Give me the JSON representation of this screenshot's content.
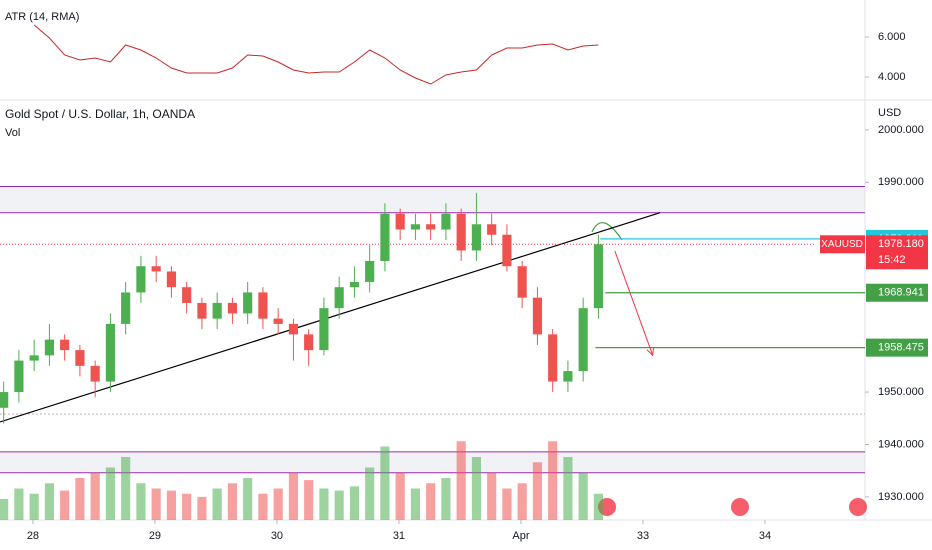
{
  "chart_data": {
    "type": "candlestick",
    "title": "Gold Spot / U.S. Dollar, 1h, OANDA",
    "volume_label": "Vol",
    "y_axis_unit": "USD",
    "x": [
      27.76,
      27.885,
      28.01,
      28.135,
      28.26,
      28.385,
      28.51,
      28.635,
      28.76,
      28.885,
      29.01,
      29.135,
      29.26,
      29.385,
      29.51,
      29.635,
      29.76,
      29.885,
      30.01,
      30.135,
      30.26,
      30.385,
      30.51,
      30.635,
      30.76,
      30.885,
      31.01,
      31.135,
      31.26,
      31.385,
      31.51,
      31.635,
      31.76,
      31.885,
      32.01,
      32.135,
      32.26,
      32.385,
      32.51,
      32.635
    ],
    "open": [
      1947,
      1950,
      1956,
      1957,
      1960,
      1958,
      1955,
      1952,
      1963,
      1969,
      1974,
      1973,
      1970,
      1967,
      1964,
      1967,
      1965,
      1969,
      1964,
      1963,
      1961,
      1958,
      1966,
      1970,
      1971,
      1975,
      1984,
      1981,
      1982,
      1981,
      1984,
      1977,
      1982,
      1980,
      1974,
      1968,
      1961,
      1952,
      1954,
      1966
    ],
    "high": [
      1952,
      1958,
      1960,
      1963,
      1961,
      1959,
      1956,
      1965,
      1971,
      1976,
      1976,
      1974,
      1971,
      1968,
      1969,
      1968,
      1971,
      1970,
      1966,
      1964,
      1962,
      1968,
      1972,
      1974,
      1978,
      1986,
      1985,
      1984,
      1984,
      1986,
      1985,
      1988,
      1984,
      1982,
      1975,
      1970,
      1962,
      1956,
      1968,
      1980
    ],
    "low": [
      1944,
      1948,
      1954,
      1955,
      1956,
      1953,
      1949,
      1950,
      1961,
      1967,
      1971,
      1968,
      1965,
      1962,
      1962,
      1963,
      1963,
      1962,
      1961,
      1956,
      1955,
      1957,
      1964,
      1968,
      1969,
      1973,
      1979,
      1979,
      1979,
      1979,
      1975,
      1975,
      1978,
      1973,
      1966,
      1959,
      1950,
      1950,
      1952,
      1964
    ],
    "close": [
      1950,
      1956,
      1957,
      1960,
      1958,
      1955,
      1952,
      1963,
      1969,
      1974,
      1973,
      1970,
      1967,
      1964,
      1967,
      1965,
      1969,
      1964,
      1963,
      1961,
      1958,
      1966,
      1970,
      1971,
      1975,
      1984,
      1981,
      1982,
      1981,
      1984,
      1977,
      1982,
      1980,
      1974,
      1968,
      1961,
      1952,
      1954,
      1966,
      1978.18
    ],
    "volume": [
      20,
      30,
      25,
      35,
      28,
      40,
      45,
      50,
      60,
      35,
      30,
      28,
      25,
      22,
      30,
      35,
      40,
      25,
      30,
      45,
      38,
      30,
      28,
      32,
      50,
      70,
      45,
      30,
      35,
      40,
      75,
      60,
      45,
      30,
      35,
      55,
      75,
      60,
      45,
      25
    ],
    "volume_ylim": [
      0,
      100
    ],
    "up_color": "#4caf50",
    "down_color": "#ef5350",
    "xlim": [
      27.73,
      34.82
    ],
    "xticks": [
      28,
      29,
      30,
      31,
      {
        "value": 32,
        "label": "Apr"
      },
      33,
      34
    ],
    "ylim": [
      1925.6,
      2005.7
    ],
    "yticks": [
      {
        "value": 2000,
        "label": "2000.000"
      },
      {
        "value": 1990,
        "label": "1990.000"
      },
      {
        "value": 1950,
        "label": "1950.000"
      },
      {
        "value": 1940,
        "label": "1940.000"
      },
      {
        "value": 1930,
        "label": "1930.000"
      }
    ],
    "zones": [
      {
        "top": 1989.2,
        "bottom": 1984.2,
        "color": "#9c27b0"
      },
      {
        "top": 1938.6,
        "bottom": 1934.6,
        "color": "#9c27b0"
      }
    ],
    "trendline": {
      "x": [
        27.73,
        33.14
      ],
      "y": [
        1944.3,
        1984.2
      ],
      "color": "#000000"
    },
    "arrow": {
      "x": [
        32.77,
        33.08
      ],
      "y": [
        1976.9,
        1957.0
      ],
      "color": "#f23645"
    },
    "levels": [
      {
        "value": 1979.211,
        "label": "1979.211",
        "color": "#26c6da",
        "from": 32.65
      },
      {
        "value": 1968.941,
        "label": "1968.941",
        "color": "#43a047",
        "from": 32.69
      },
      {
        "value": 1958.475,
        "label": "1958.475",
        "color": "#43a047",
        "from": 32.61
      }
    ],
    "last_price": {
      "value": 1978.18,
      "label": "1978.180",
      "symbol": "XAUUSD",
      "countdown": "15:42",
      "color": "#f23645"
    },
    "indicator": {
      "type": "line",
      "title": "ATR (14, RMA)",
      "color": "#c62828",
      "values": [
        null,
        null,
        6.6,
        5.95,
        5.1,
        4.85,
        4.95,
        4.75,
        5.6,
        5.35,
        4.95,
        4.45,
        4.2,
        4.2,
        4.2,
        4.45,
        5.1,
        5.05,
        4.75,
        4.35,
        4.2,
        4.25,
        4.25,
        4.75,
        5.35,
        4.95,
        4.35,
        3.95,
        3.65,
        4.1,
        4.25,
        4.35,
        5.1,
        5.45,
        5.45,
        5.6,
        5.65,
        5.35,
        5.55,
        5.6
      ],
      "ylim": [
        2.85,
        7.85
      ],
      "yticks": [
        {
          "value": 6,
          "label": "6.000"
        },
        {
          "value": 4,
          "label": "4.000"
        }
      ]
    }
  }
}
